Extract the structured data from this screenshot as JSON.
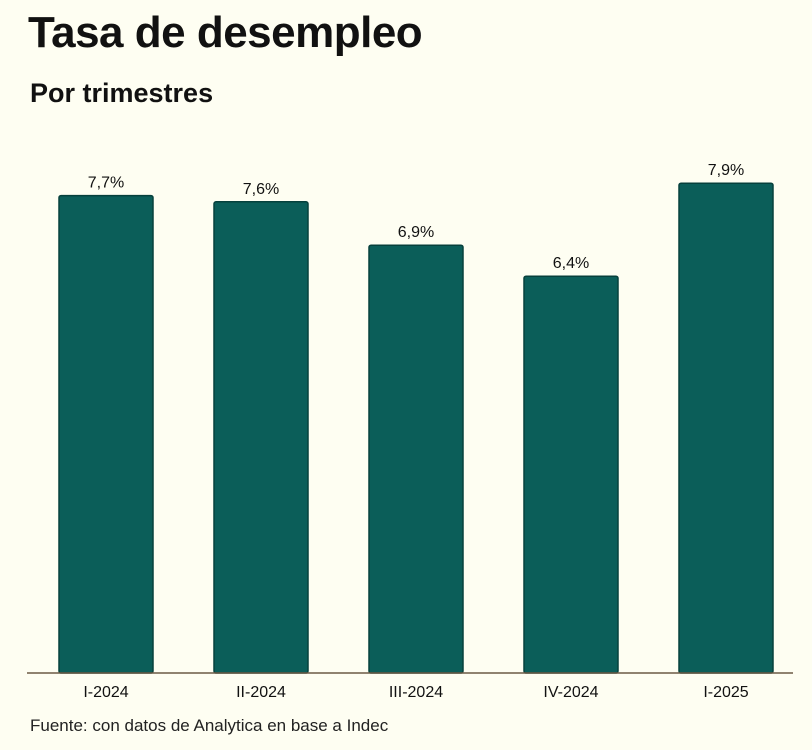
{
  "chart_data": {
    "type": "bar",
    "title": "Tasa de desempleo",
    "subtitle": "Por trimestres",
    "categories": [
      "I-2024",
      "II-2024",
      "III-2024",
      "IV-2024",
      "I-2025"
    ],
    "values": [
      7.7,
      7.6,
      6.9,
      6.4,
      7.9
    ],
    "value_labels": [
      "7,7%",
      "7,6%",
      "6,9%",
      "6,4%",
      "7,9%"
    ],
    "xlabel": "",
    "ylabel": "",
    "ylim": [
      0,
      8.1
    ],
    "grid": false,
    "colors": {
      "bar": "#0b5e59",
      "bar_border": "#06403c",
      "background": "#fefef2",
      "axis": "#6b5a45"
    }
  },
  "source": "Fuente: con datos de Analytica en base a Indec"
}
